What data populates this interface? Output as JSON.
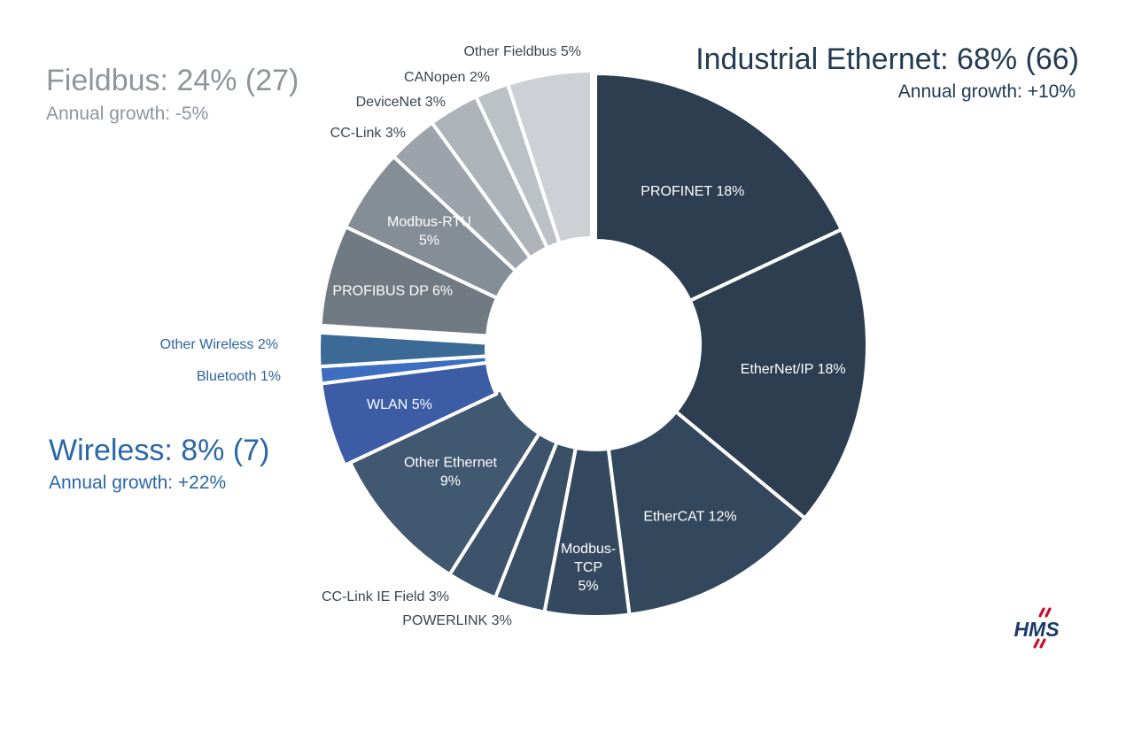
{
  "groups": {
    "fieldbus": {
      "title": "Fieldbus: 24% (27)",
      "growth": "Annual growth: -5%"
    },
    "industrial_ethernet": {
      "title": "Industrial Ethernet: 68% (66)",
      "growth": "Annual growth: +10%"
    },
    "wireless": {
      "title": "Wireless: 8% (7)",
      "growth": "Annual growth: +22%"
    }
  },
  "logo": {
    "text": "HMS"
  },
  "chart_data": {
    "type": "pie",
    "variant": "donut",
    "title": "",
    "groups": [
      {
        "name": "Industrial Ethernet",
        "share": 68,
        "growth": 10
      },
      {
        "name": "Wireless",
        "share": 8,
        "growth": 22
      },
      {
        "name": "Fieldbus",
        "share": 24,
        "growth": -5
      }
    ],
    "slices": [
      {
        "name": "PROFINET",
        "value": 18,
        "group": "Industrial Ethernet",
        "label_lines": [
          "PROFINET 18%"
        ],
        "color": "#2c3e50",
        "label_inside": true
      },
      {
        "name": "EtherNet/IP",
        "value": 18,
        "group": "Industrial Ethernet",
        "label_lines": [
          "EtherNet/IP 18%"
        ],
        "color": "#2c3e50",
        "label_inside": true
      },
      {
        "name": "EtherCAT",
        "value": 12,
        "group": "Industrial Ethernet",
        "label_lines": [
          "EtherCAT 12%"
        ],
        "color": "#33475d",
        "label_inside": true
      },
      {
        "name": "Modbus-TCP",
        "value": 5,
        "group": "Industrial Ethernet",
        "label_lines": [
          "Modbus-",
          "TCP",
          "5%"
        ],
        "color": "#34495f",
        "label_inside": true
      },
      {
        "name": "POWERLINK",
        "value": 3,
        "group": "Industrial Ethernet",
        "label_lines": [
          "POWERLINK 3%"
        ],
        "color": "#384f66",
        "label_inside": false
      },
      {
        "name": "CC-Link IE Field",
        "value": 3,
        "group": "Industrial Ethernet",
        "label_lines": [
          "CC-Link IE Field 3%"
        ],
        "color": "#3c536b",
        "label_inside": false
      },
      {
        "name": "Other Ethernet",
        "value": 9,
        "group": "Industrial Ethernet",
        "label_lines": [
          "Other Ethernet",
          "9%"
        ],
        "color": "#415871",
        "label_inside": true
      },
      {
        "name": "WLAN",
        "value": 5,
        "group": "Wireless",
        "label_lines": [
          "WLAN 5%"
        ],
        "color": "#3c5ca6",
        "label_inside": true
      },
      {
        "name": "Bluetooth",
        "value": 1,
        "group": "Wireless",
        "label_lines": [
          "Bluetooth 1%"
        ],
        "color": "#3d6fc0",
        "label_inside": false
      },
      {
        "name": "Other Wireless",
        "value": 2,
        "group": "Wireless",
        "label_lines": [
          "Other Wireless 2%"
        ],
        "color": "#3a6a95",
        "label_inside": false
      },
      {
        "name": "PROFIBUS DP",
        "value": 6,
        "group": "Fieldbus",
        "label_lines": [
          "PROFIBUS DP 6%"
        ],
        "color": "#717a83",
        "label_inside": true
      },
      {
        "name": "Modbus-RTU",
        "value": 5,
        "group": "Fieldbus",
        "label_lines": [
          "Modbus-RTU",
          "5%"
        ],
        "color": "#858e97",
        "label_inside": true
      },
      {
        "name": "CC-Link",
        "value": 3,
        "group": "Fieldbus",
        "label_lines": [
          "CC-Link 3%"
        ],
        "color": "#9ca3aa",
        "label_inside": false
      },
      {
        "name": "DeviceNet",
        "value": 3,
        "group": "Fieldbus",
        "label_lines": [
          "DeviceNet 3%"
        ],
        "color": "#adb3b9",
        "label_inside": false
      },
      {
        "name": "CANopen",
        "value": 2,
        "group": "Fieldbus",
        "label_lines": [
          "CANopen 2%"
        ],
        "color": "#bcc1c6",
        "label_inside": false
      },
      {
        "name": "Other Fieldbus",
        "value": 5,
        "group": "Fieldbus",
        "label_lines": [
          "Other Fieldbus 5%"
        ],
        "color": "#cdd1d5",
        "label_inside": false
      }
    ]
  }
}
